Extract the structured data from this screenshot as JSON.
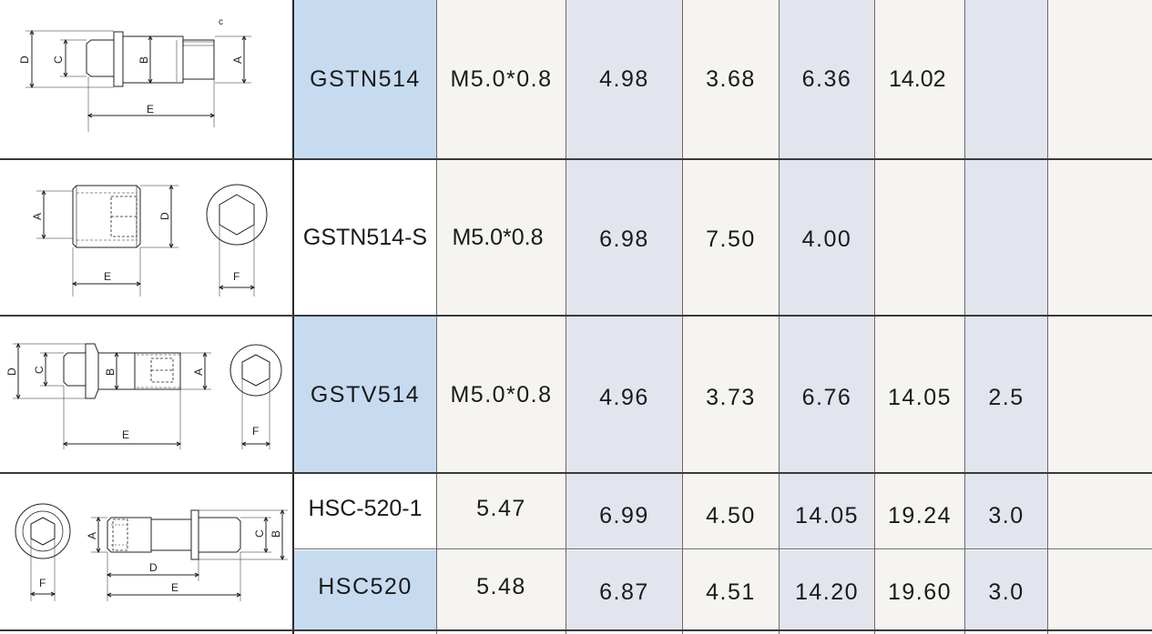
{
  "rows": [
    {
      "model": "GSTN514",
      "thread": "M5.0*0.8",
      "v1": "4.98",
      "v2": "3.68",
      "v3": "6.36",
      "v4": "14.02",
      "v5": "",
      "v6": ""
    },
    {
      "model": "GSTN514-S",
      "thread": "M5.0*0.8",
      "v1": "6.98",
      "v2": "7.50",
      "v3": "4.00",
      "v4": "",
      "v5": "",
      "v6": ""
    },
    {
      "model": "GSTV514",
      "thread": "M5.0*0.8",
      "v1": "4.96",
      "v2": "3.73",
      "v3": "6.76",
      "v4": "14.05",
      "v5": "2.5",
      "v6": ""
    },
    {
      "model": "HSC-520-1",
      "thread": "5.47",
      "v1": "6.99",
      "v2": "4.50",
      "v3": "14.05",
      "v4": "19.24",
      "v5": "3.0",
      "v6": ""
    },
    {
      "model": "HSC520",
      "thread": "5.48",
      "v1": "6.87",
      "v2": "4.51",
      "v3": "14.20",
      "v4": "19.60",
      "v5": "3.0",
      "v6": ""
    }
  ],
  "drawings": {
    "d1": {
      "A": "A",
      "B": "B",
      "C": "C",
      "D": "D",
      "E": "E",
      "c_small": "c"
    },
    "d2": {
      "A": "A",
      "D": "D",
      "E": "E",
      "F": "F"
    },
    "d3": {
      "A": "A",
      "B": "B",
      "C": "C",
      "D": "D",
      "E": "E",
      "F": "F"
    },
    "d4": {
      "A": "A",
      "B": "B",
      "C": "C",
      "D": "D",
      "E": "E",
      "F": "F"
    }
  },
  "colors": {
    "model_highlight": "#c6dbf0",
    "alt_column": "#e2e5ee",
    "base_column": "#f5f4f0"
  }
}
